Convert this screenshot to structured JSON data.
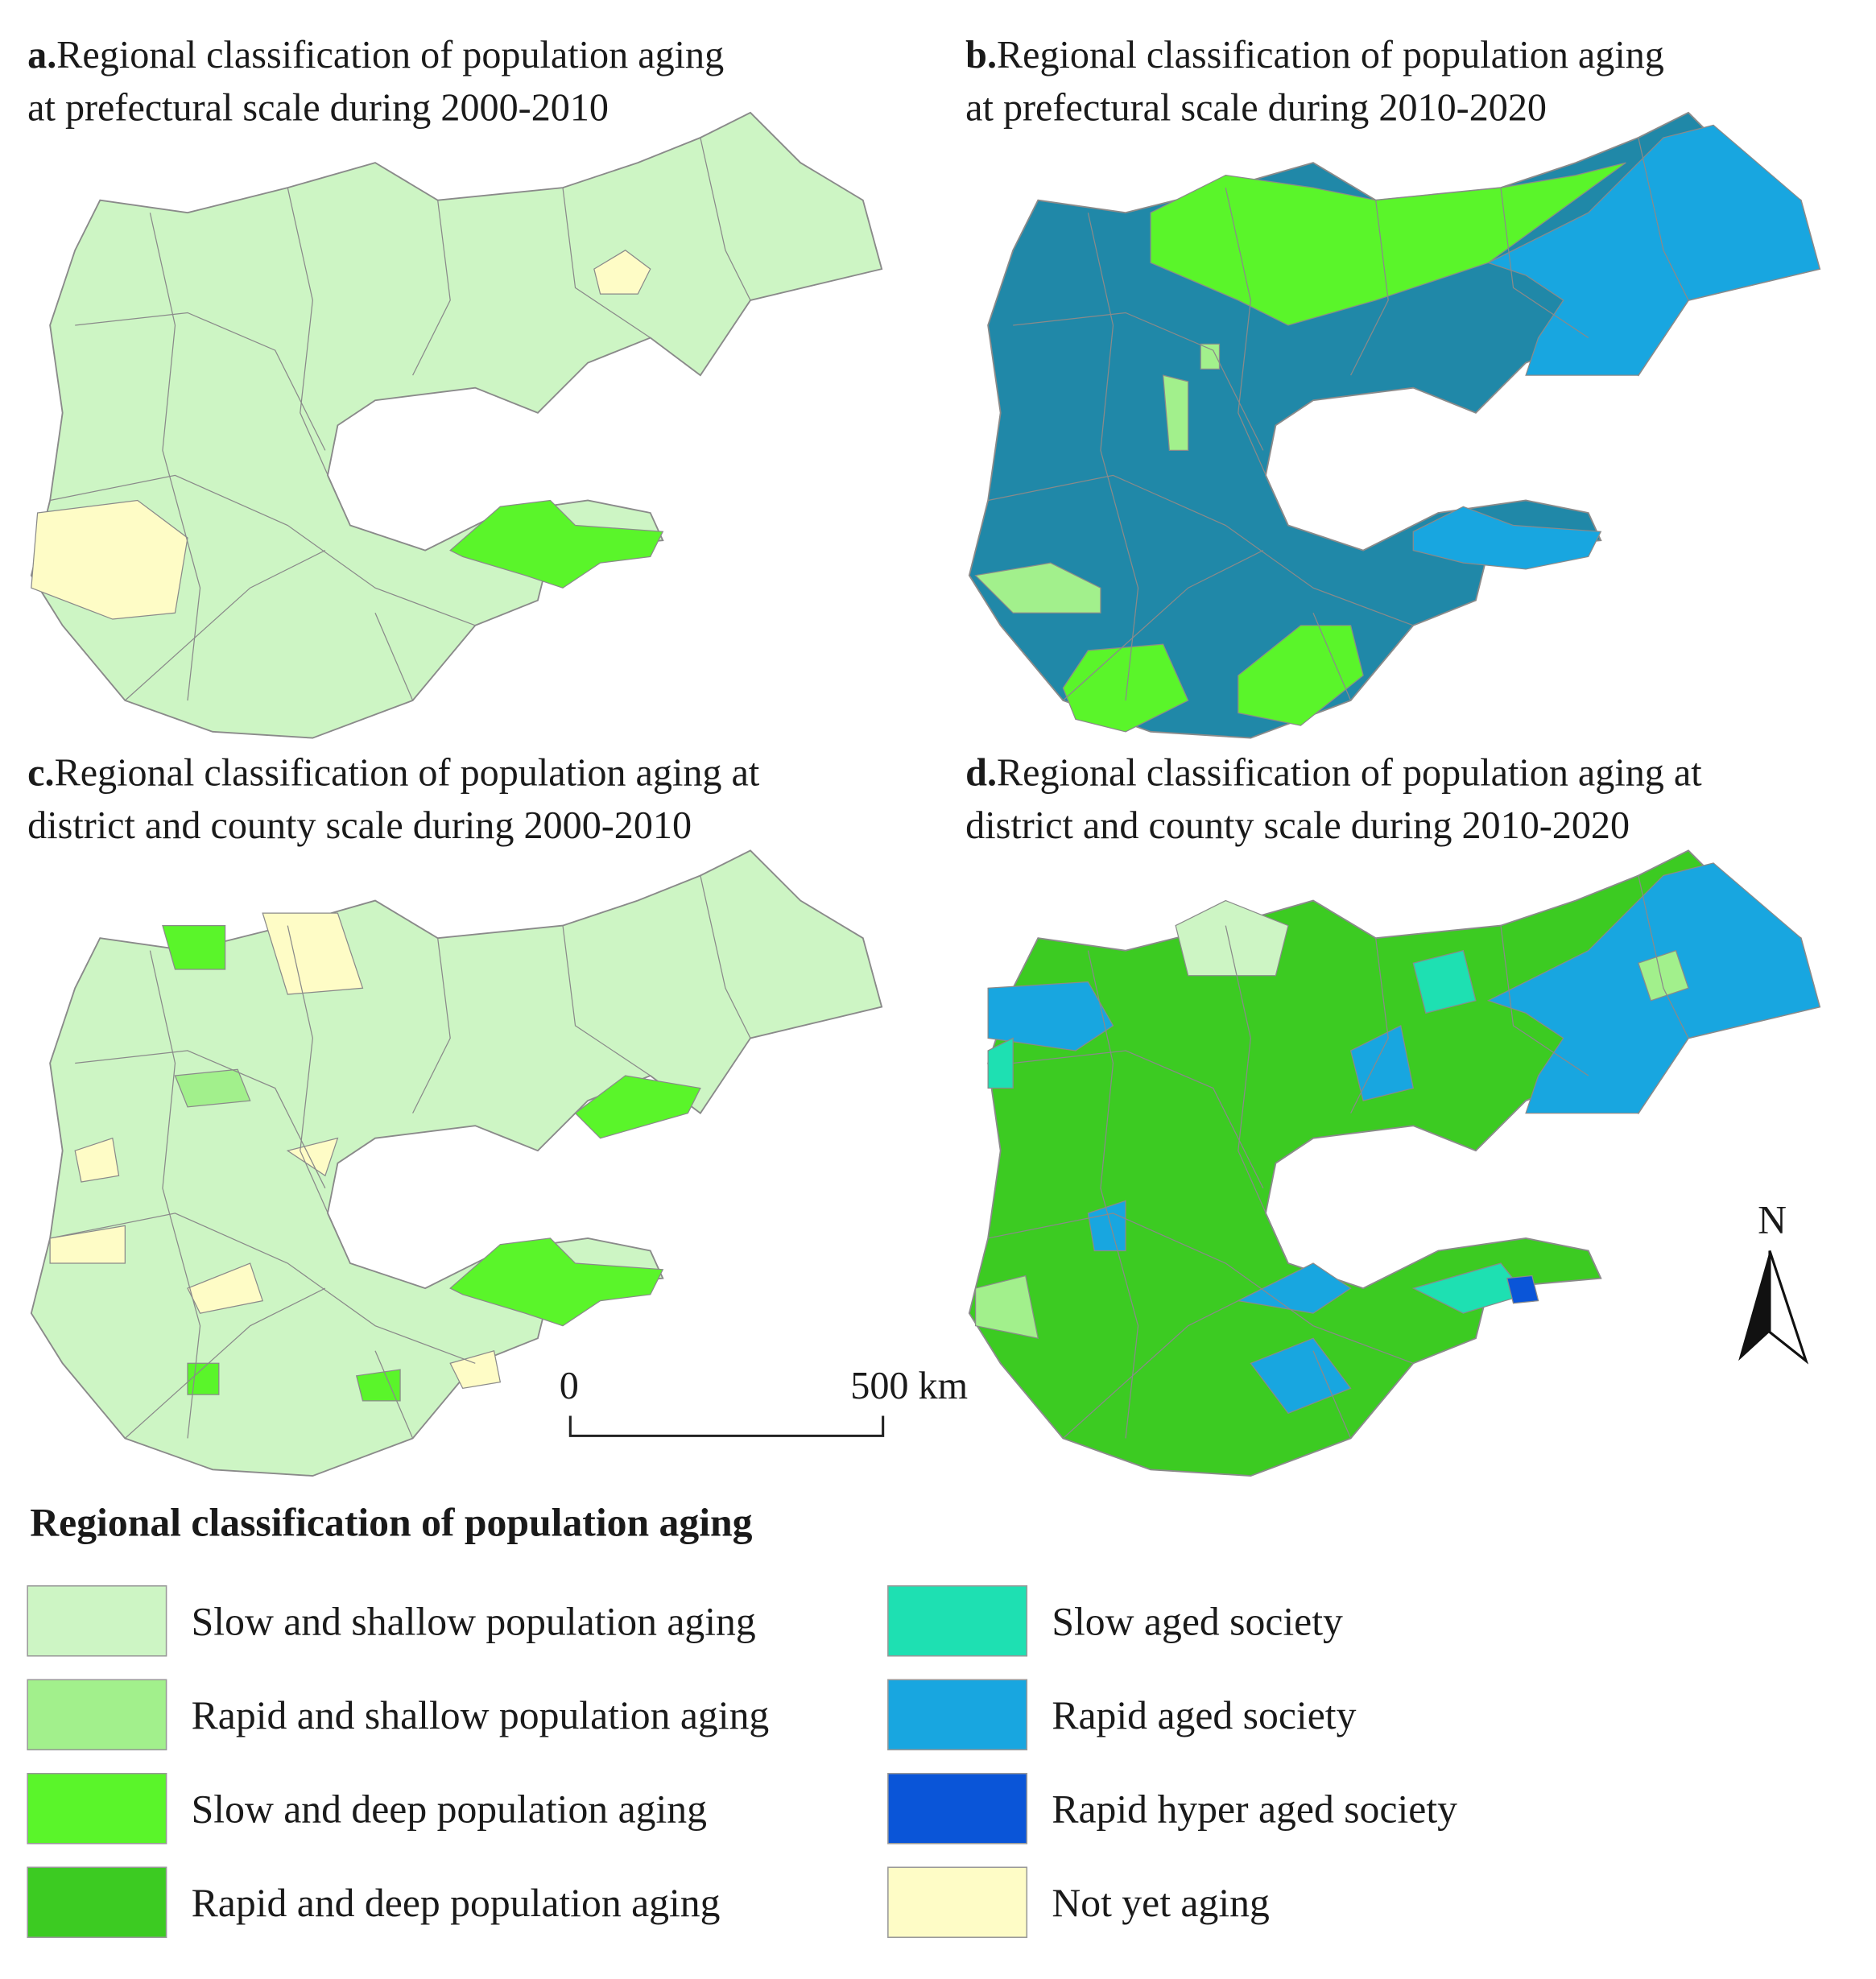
{
  "panels": [
    {
      "letter": "a.",
      "title": [
        "Regional classification of population aging",
        "at prefectural scale during 2000-2010"
      ]
    },
    {
      "letter": "b.",
      "title": [
        "Regional classification of population aging",
        "at prefectural scale during 2010-2020"
      ]
    },
    {
      "letter": "c.",
      "title": [
        "Regional classification of population aging at",
        "district and county scale during 2000-2010"
      ]
    },
    {
      "letter": "d.",
      "title": [
        "Regional classification of population aging at",
        "district and county scale during 2010-2020"
      ]
    }
  ],
  "scale_bar": {
    "start": "0",
    "end": "500 km"
  },
  "north": "N",
  "legend": {
    "title": "Regional classification of population aging",
    "items": [
      {
        "label": "Slow and shallow population aging",
        "color": "#cdf5c4"
      },
      {
        "label": "Rapid and shallow population aging",
        "color": "#a2f08c"
      },
      {
        "label": "Slow and deep population aging",
        "color": "#5af52a"
      },
      {
        "label": "Rapid and deep population aging",
        "color": "#3ccb22"
      },
      {
        "label": "Slow aged society",
        "color": "#1ee0b2"
      },
      {
        "label": "Rapid aged society",
        "color": "#18a6e0"
      },
      {
        "label": "Rapid hyper aged society",
        "color": "#0a55d8"
      },
      {
        "label": "Not yet aging",
        "color": "#fefcc6"
      }
    ]
  }
}
